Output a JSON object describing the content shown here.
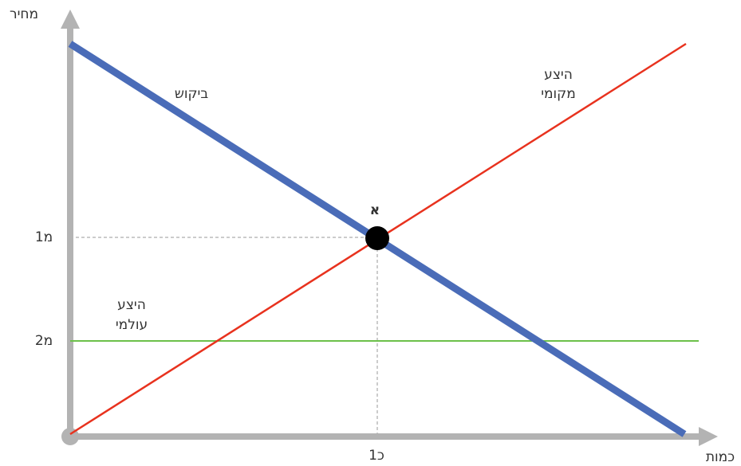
{
  "axes": {
    "y_label": "מחיר",
    "x_label": "כמות"
  },
  "curves": {
    "demand": {
      "label": "ביקוש"
    },
    "local_supply": {
      "label_lines": [
        "היצע",
        "מקומי"
      ]
    },
    "world_supply": {
      "label_lines": [
        "היצע",
        "עולמי"
      ]
    }
  },
  "point": {
    "label": "א"
  },
  "ticks": {
    "price_1": "מ1",
    "price_2": "מ2",
    "quantity_1": "כ1"
  }
}
